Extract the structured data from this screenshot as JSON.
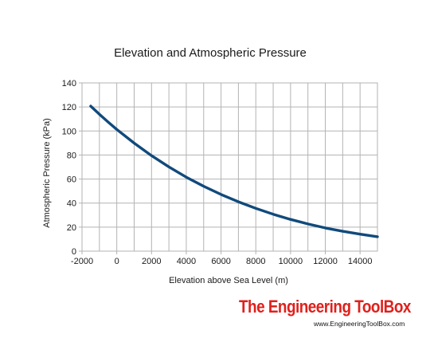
{
  "chart_data": {
    "type": "line",
    "title": "Elevation and Atmospheric Pressure",
    "xlabel": "Elevation above Sea Level (m)",
    "ylabel": "Atmospheric Pressure (kPa)",
    "xlim": [
      -2000,
      15000
    ],
    "ylim": [
      0,
      140
    ],
    "xticks": [
      -2000,
      0,
      2000,
      4000,
      6000,
      8000,
      10000,
      12000,
      14000
    ],
    "yticks": [
      0,
      20,
      40,
      60,
      80,
      100,
      120,
      140
    ],
    "grid": true,
    "legend": "none",
    "series": [
      {
        "color": "#104a7c",
        "x": [
          -1500,
          -1000,
          -500,
          0,
          1000,
          2000,
          3000,
          4000,
          5000,
          6000,
          7000,
          8000,
          9000,
          10000,
          11000,
          12000,
          13000,
          14000,
          15000
        ],
        "y": [
          120.7,
          113.9,
          107.5,
          101.3,
          89.9,
          79.5,
          70.1,
          61.6,
          54.0,
          47.2,
          41.1,
          35.6,
          30.7,
          26.4,
          22.6,
          19.3,
          16.5,
          14.1,
          12.0
        ]
      }
    ]
  },
  "watermark": {
    "name": "The Engineering ToolBox",
    "url": "www.EngineeringToolBox.com",
    "color": "#e0201c"
  }
}
